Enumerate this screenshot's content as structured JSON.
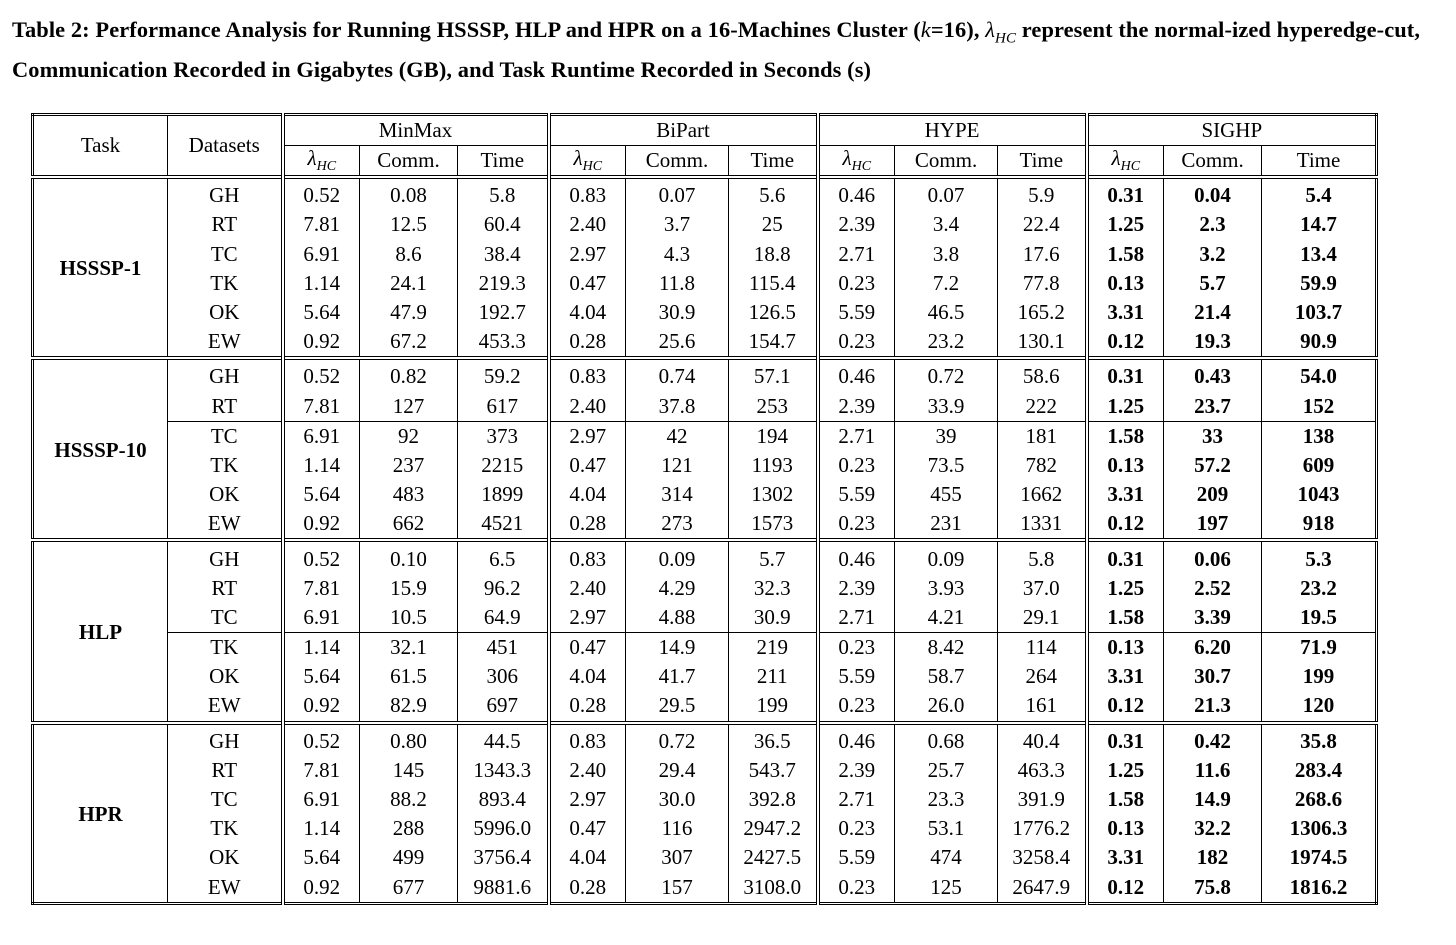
{
  "caption": {
    "prefix": "Table 2: Performance Analysis for Running HSSSP, HLP and HPR on a 16-Machines Cluster (",
    "k_expr": "k",
    "k_val": "=16), ",
    "lambda": "λ",
    "lambda_sub": "HC",
    "suffix": " represent the normal-ized hyperedge-cut, Communication Recorded in Gigabytes (GB), and Task Runtime Recorded in Seconds (s)"
  },
  "header": {
    "task": "Task",
    "datasets": "Datasets",
    "methods": [
      "MinMax",
      "BiPart",
      "HYPE",
      "SIGHP"
    ],
    "lambda_symbol": "λ",
    "lambda_sub": "HC",
    "comm": "Comm.",
    "time": "Time"
  },
  "tasks": [
    {
      "name": "HSSSP-1",
      "rows": [
        {
          "ds": "GH",
          "v": [
            "0.52",
            "0.08",
            "5.8",
            "0.83",
            "0.07",
            "5.6",
            "0.46",
            "0.07",
            "5.9",
            "0.31",
            "0.04",
            "5.4"
          ]
        },
        {
          "ds": "RT",
          "v": [
            "7.81",
            "12.5",
            "60.4",
            "2.40",
            "3.7",
            "25",
            "2.39",
            "3.4",
            "22.4",
            "1.25",
            "2.3",
            "14.7"
          ]
        },
        {
          "ds": "TC",
          "v": [
            "6.91",
            "8.6",
            "38.4",
            "2.97",
            "4.3",
            "18.8",
            "2.71",
            "3.8",
            "17.6",
            "1.58",
            "3.2",
            "13.4"
          ]
        },
        {
          "ds": "TK",
          "v": [
            "1.14",
            "24.1",
            "219.3",
            "0.47",
            "11.8",
            "115.4",
            "0.23",
            "7.2",
            "77.8",
            "0.13",
            "5.7",
            "59.9"
          ]
        },
        {
          "ds": "OK",
          "v": [
            "5.64",
            "47.9",
            "192.7",
            "4.04",
            "30.9",
            "126.5",
            "5.59",
            "46.5",
            "165.2",
            "3.31",
            "21.4",
            "103.7"
          ]
        },
        {
          "ds": "EW",
          "v": [
            "0.92",
            "67.2",
            "453.3",
            "0.28",
            "25.6",
            "154.7",
            "0.23",
            "23.2",
            "130.1",
            "0.12",
            "19.3",
            "90.9"
          ]
        }
      ]
    },
    {
      "name": "HSSSP-10",
      "rows": [
        {
          "ds": "GH",
          "v": [
            "0.52",
            "0.82",
            "59.2",
            "0.83",
            "0.74",
            "57.1",
            "0.46",
            "0.72",
            "58.6",
            "0.31",
            "0.43",
            "54.0"
          ]
        },
        {
          "ds": "RT",
          "v": [
            "7.81",
            "127",
            "617",
            "2.40",
            "37.8",
            "253",
            "2.39",
            "33.9",
            "222",
            "1.25",
            "23.7",
            "152"
          ]
        },
        {
          "ds": "TC",
          "v": [
            "6.91",
            "92",
            "373",
            "2.97",
            "42",
            "194",
            "2.71",
            "39",
            "181",
            "1.58",
            "33",
            "138"
          ]
        },
        {
          "ds": "TK",
          "v": [
            "1.14",
            "237",
            "2215",
            "0.47",
            "121",
            "1193",
            "0.23",
            "73.5",
            "782",
            "0.13",
            "57.2",
            "609"
          ]
        },
        {
          "ds": "OK",
          "v": [
            "5.64",
            "483",
            "1899",
            "4.04",
            "314",
            "1302",
            "5.59",
            "455",
            "1662",
            "3.31",
            "209",
            "1043"
          ]
        },
        {
          "ds": "EW",
          "v": [
            "0.92",
            "662",
            "4521",
            "0.28",
            "273",
            "1573",
            "0.23",
            "231",
            "1331",
            "0.12",
            "197",
            "918"
          ]
        }
      ]
    },
    {
      "name": "HLP",
      "rows": [
        {
          "ds": "GH",
          "v": [
            "0.52",
            "0.10",
            "6.5",
            "0.83",
            "0.09",
            "5.7",
            "0.46",
            "0.09",
            "5.8",
            "0.31",
            "0.06",
            "5.3"
          ]
        },
        {
          "ds": "RT",
          "v": [
            "7.81",
            "15.9",
            "96.2",
            "2.40",
            "4.29",
            "32.3",
            "2.39",
            "3.93",
            "37.0",
            "1.25",
            "2.52",
            "23.2"
          ]
        },
        {
          "ds": "TC",
          "v": [
            "6.91",
            "10.5",
            "64.9",
            "2.97",
            "4.88",
            "30.9",
            "2.71",
            "4.21",
            "29.1",
            "1.58",
            "3.39",
            "19.5"
          ]
        },
        {
          "ds": "TK",
          "v": [
            "1.14",
            "32.1",
            "451",
            "0.47",
            "14.9",
            "219",
            "0.23",
            "8.42",
            "114",
            "0.13",
            "6.20",
            "71.9"
          ]
        },
        {
          "ds": "OK",
          "v": [
            "5.64",
            "61.5",
            "306",
            "4.04",
            "41.7",
            "211",
            "5.59",
            "58.7",
            "264",
            "3.31",
            "30.7",
            "199"
          ]
        },
        {
          "ds": "EW",
          "v": [
            "0.92",
            "82.9",
            "697",
            "0.28",
            "29.5",
            "199",
            "0.23",
            "26.0",
            "161",
            "0.12",
            "21.3",
            "120"
          ]
        }
      ]
    },
    {
      "name": "HPR",
      "rows": [
        {
          "ds": "GH",
          "v": [
            "0.52",
            "0.80",
            "44.5",
            "0.83",
            "0.72",
            "36.5",
            "0.46",
            "0.68",
            "40.4",
            "0.31",
            "0.42",
            "35.8"
          ]
        },
        {
          "ds": "RT",
          "v": [
            "7.81",
            "145",
            "1343.3",
            "2.40",
            "29.4",
            "543.7",
            "2.39",
            "25.7",
            "463.3",
            "1.25",
            "11.6",
            "283.4"
          ]
        },
        {
          "ds": "TC",
          "v": [
            "6.91",
            "88.2",
            "893.4",
            "2.97",
            "30.0",
            "392.8",
            "2.71",
            "23.3",
            "391.9",
            "1.58",
            "14.9",
            "268.6"
          ]
        },
        {
          "ds": "TK",
          "v": [
            "1.14",
            "288",
            "5996.0",
            "0.47",
            "116",
            "2947.2",
            "0.23",
            "53.1",
            "1776.2",
            "0.13",
            "32.2",
            "1306.3"
          ]
        },
        {
          "ds": "OK",
          "v": [
            "5.64",
            "499",
            "3756.4",
            "4.04",
            "307",
            "2427.5",
            "5.59",
            "474",
            "3258.4",
            "3.31",
            "182",
            "1974.5"
          ]
        },
        {
          "ds": "EW",
          "v": [
            "0.92",
            "677",
            "9881.6",
            "0.28",
            "157",
            "3108.0",
            "0.23",
            "125",
            "2647.9",
            "0.12",
            "75.8",
            "1816.2"
          ]
        }
      ]
    }
  ]
}
